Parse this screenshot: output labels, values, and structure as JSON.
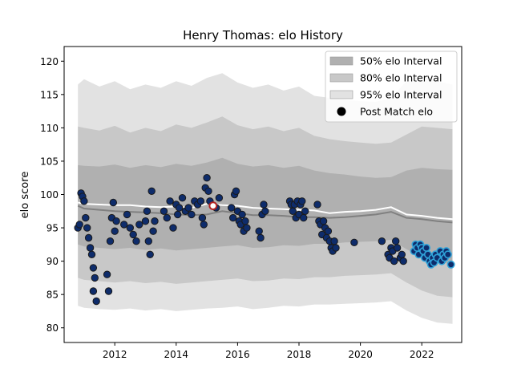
{
  "chart_data": {
    "type": "scatter",
    "title": "Henry Thomas: elo History",
    "xlabel": "",
    "ylabel": "elo score",
    "xlim": [
      2010.35,
      2023.3
    ],
    "ylim": [
      77.8,
      122.2
    ],
    "x_ticks": [
      2012,
      2014,
      2016,
      2018,
      2020,
      2022
    ],
    "y_ticks": [
      80,
      85,
      90,
      95,
      100,
      105,
      110,
      115,
      120
    ],
    "grid": false,
    "legend_position": "top-right",
    "legend": [
      {
        "label": "50% elo Interval",
        "kind": "patch",
        "color": "#b0b0b0"
      },
      {
        "label": "80% elo Interval",
        "kind": "patch",
        "color": "#c8c8c8"
      },
      {
        "label": "95% elo Interval",
        "kind": "patch",
        "color": "#e2e2e2"
      },
      {
        "label": "Post Match elo",
        "kind": "marker",
        "color": "#000000"
      }
    ],
    "bands": {
      "x": [
        2010.8,
        2011.0,
        2011.5,
        2012.0,
        2012.5,
        2013.0,
        2013.5,
        2014.0,
        2014.5,
        2015.0,
        2015.5,
        2016.0,
        2016.5,
        2017.0,
        2017.5,
        2018.0,
        2018.5,
        2019.0,
        2019.5,
        2020.0,
        2020.5,
        2021.0,
        2021.5,
        2022.0,
        2022.5,
        2023.0
      ],
      "p95_lower": [
        83.3,
        83.0,
        82.8,
        82.7,
        82.9,
        82.6,
        82.8,
        82.5,
        82.7,
        82.9,
        83.0,
        83.2,
        82.8,
        83.0,
        83.3,
        83.2,
        83.5,
        83.5,
        83.6,
        83.7,
        83.8,
        84.0,
        82.6,
        81.5,
        80.8,
        80.6
      ],
      "p80_lower": [
        87.5,
        87.2,
        87.0,
        86.8,
        87.0,
        86.7,
        86.9,
        86.6,
        86.8,
        87.0,
        87.2,
        87.4,
        87.0,
        87.1,
        87.4,
        87.3,
        87.6,
        87.6,
        87.8,
        87.9,
        88.0,
        88.2,
        86.8,
        85.6,
        84.8,
        84.6
      ],
      "p50_lower": [
        92.5,
        92.2,
        92.0,
        91.8,
        92.0,
        91.7,
        91.9,
        91.6,
        91.8,
        92.0,
        92.2,
        92.4,
        92.0,
        92.1,
        92.4,
        92.3,
        92.6,
        92.6,
        92.8,
        92.9,
        93.0,
        93.2,
        91.8,
        90.6,
        89.8,
        89.6
      ],
      "p50_upper": [
        104.4,
        104.3,
        104.2,
        104.5,
        104.0,
        104.4,
        104.1,
        104.6,
        104.3,
        104.8,
        105.5,
        104.6,
        104.2,
        104.4,
        104.0,
        104.3,
        103.6,
        103.2,
        103.0,
        102.7,
        102.5,
        102.6,
        103.6,
        104.0,
        103.8,
        103.7
      ],
      "p80_upper": [
        110.2,
        110.0,
        109.6,
        110.3,
        109.3,
        110.0,
        109.5,
        110.5,
        110.0,
        110.8,
        111.7,
        110.4,
        109.8,
        110.2,
        109.5,
        110.0,
        108.8,
        108.3,
        108.0,
        107.8,
        107.6,
        107.8,
        109.0,
        110.2,
        110.0,
        109.8
      ],
      "p95_upper": [
        116.5,
        117.3,
        116.2,
        117.0,
        115.8,
        116.5,
        116.0,
        117.0,
        116.3,
        117.5,
        118.2,
        116.8,
        116.0,
        116.5,
        115.6,
        116.2,
        114.8,
        114.5,
        114.2,
        114.0,
        113.9,
        114.5,
        117.0,
        117.8,
        117.0,
        116.5
      ]
    },
    "median_line": {
      "color": "#808080",
      "x": [
        2010.8,
        2011.0,
        2011.5,
        2012.0,
        2012.5,
        2013.0,
        2013.5,
        2014.0,
        2014.5,
        2015.0,
        2015.5,
        2016.0,
        2016.5,
        2017.0,
        2017.5,
        2018.0,
        2018.5,
        2019.0,
        2019.5,
        2020.0,
        2020.5,
        2021.0,
        2021.5,
        2022.0,
        2022.5,
        2023.0
      ],
      "y": [
        98.3,
        97.9,
        97.7,
        97.5,
        97.4,
        97.3,
        97.2,
        97.0,
        96.9,
        97.0,
        97.5,
        97.2,
        96.9,
        96.9,
        96.8,
        96.6,
        96.6,
        96.5,
        96.6,
        96.8,
        97.0,
        97.4,
        96.5,
        96.3,
        96.0,
        95.8
      ]
    },
    "mean_line": {
      "color": "#ffffff",
      "x": [
        2010.8,
        2011.0,
        2011.5,
        2012.0,
        2012.5,
        2013.0,
        2013.5,
        2014.0,
        2014.5,
        2015.0,
        2015.5,
        2016.0,
        2016.5,
        2017.0,
        2017.5,
        2018.0,
        2018.5,
        2019.0,
        2019.5,
        2020.0,
        2020.5,
        2021.0,
        2021.5,
        2022.0,
        2022.5,
        2023.0
      ],
      "y": [
        98.8,
        98.6,
        98.5,
        98.4,
        98.4,
        98.2,
        98.1,
        98.2,
        98.0,
        98.6,
        98.4,
        98.3,
        98.0,
        97.9,
        97.8,
        97.7,
        97.6,
        97.2,
        97.4,
        97.5,
        97.7,
        98.1,
        97.0,
        96.8,
        96.5,
        96.3
      ]
    },
    "post_match": {
      "x": [
        2010.8,
        2010.85,
        2010.9,
        2010.95,
        2011.0,
        2011.05,
        2011.1,
        2011.15,
        2011.2,
        2011.25,
        2011.3,
        2011.3,
        2011.35,
        2011.4,
        2011.75,
        2011.8,
        2011.85,
        2011.9,
        2011.95,
        2012.0,
        2012.05,
        2012.3,
        2012.4,
        2012.5,
        2012.6,
        2012.7,
        2012.8,
        2013.0,
        2013.05,
        2013.1,
        2013.15,
        2013.2,
        2013.25,
        2013.3,
        2013.6,
        2013.7,
        2013.8,
        2013.9,
        2014.0,
        2014.05,
        2014.1,
        2014.2,
        2014.3,
        2014.4,
        2014.5,
        2014.6,
        2014.7,
        2014.8,
        2014.85,
        2014.9,
        2014.95,
        2015.0,
        2015.05,
        2015.1,
        2015.2,
        2015.3,
        2015.4,
        2015.8,
        2015.85,
        2015.9,
        2015.95,
        2016.0,
        2016.05,
        2016.1,
        2016.15,
        2016.2,
        2016.25,
        2016.3,
        2016.7,
        2016.75,
        2016.8,
        2016.85,
        2016.9,
        2017.7,
        2017.75,
        2017.8,
        2017.85,
        2017.9,
        2017.95,
        2018.0,
        2018.05,
        2018.1,
        2018.15,
        2018.2,
        2018.6,
        2018.65,
        2018.7,
        2018.75,
        2018.8,
        2018.85,
        2018.9,
        2018.95,
        2019.0,
        2019.05,
        2019.1,
        2019.15,
        2019.2,
        2019.8,
        2020.7,
        2020.9,
        2020.95,
        2021.0,
        2021.05,
        2021.1,
        2021.15,
        2021.2,
        2021.3,
        2021.35,
        2021.4
      ],
      "y": [
        95.0,
        95.5,
        100.2,
        99.7,
        99.0,
        96.5,
        95.0,
        93.5,
        92.0,
        91.0,
        89.0,
        85.5,
        87.5,
        84.0,
        88.0,
        85.5,
        93.0,
        96.5,
        98.8,
        94.5,
        96.0,
        95.5,
        97.0,
        95.0,
        94.0,
        93.0,
        95.5,
        96.0,
        97.5,
        93.0,
        91.0,
        100.5,
        94.5,
        96.0,
        97.5,
        96.5,
        99.0,
        95.0,
        98.5,
        97.0,
        98.0,
        99.5,
        97.5,
        98.0,
        97.0,
        99.0,
        98.5,
        99.0,
        96.5,
        95.5,
        101.0,
        102.5,
        100.5,
        99.0,
        98.3,
        98.0,
        99.5,
        98.0,
        96.5,
        100.0,
        100.5,
        97.5,
        96.0,
        95.5,
        97.0,
        94.5,
        96.0,
        95.0,
        94.5,
        93.5,
        97.0,
        98.5,
        97.5,
        99.0,
        98.5,
        97.5,
        98.5,
        96.5,
        99.0,
        97.0,
        98.5,
        99.0,
        96.5,
        97.5,
        98.5,
        96.0,
        95.5,
        94.0,
        96.0,
        95.0,
        93.5,
        94.5,
        93.0,
        92.0,
        91.5,
        93.0,
        92.0,
        92.8,
        93.0,
        91.0,
        90.5,
        92.0,
        91.5,
        90.0,
        93.0,
        92.0,
        90.5,
        91.0,
        90.0
      ],
      "fill": "#0e2c6b",
      "edge": "#1a1a1a"
    },
    "post_match_recent": {
      "x": [
        2021.75,
        2021.8,
        2021.85,
        2021.9,
        2021.95,
        2022.0,
        2022.05,
        2022.1,
        2022.15,
        2022.2,
        2022.25,
        2022.3,
        2022.35,
        2022.4,
        2022.45,
        2022.5,
        2022.6,
        2022.65,
        2022.7,
        2022.75,
        2022.8,
        2022.85,
        2022.95
      ],
      "y": [
        91.5,
        92.5,
        92.0,
        91.0,
        92.5,
        92.0,
        91.5,
        90.5,
        92.0,
        91.0,
        90.0,
        89.5,
        90.5,
        89.8,
        91.0,
        90.5,
        91.5,
        90.0,
        91.0,
        90.5,
        91.5,
        91.0,
        89.5
      ],
      "fill": "#0e2c6b",
      "edge": "#2fa2d8"
    },
    "highlight_point": {
      "x": 2015.2,
      "y": 98.3,
      "fill": "#ffffff",
      "edge": "#b22222"
    }
  }
}
